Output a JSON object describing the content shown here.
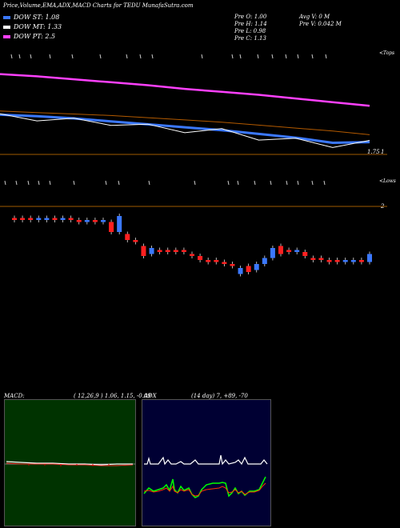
{
  "header": {
    "title": "Price,Volume,EMA,ADX,MACD Charts for TEDU MunafaSutra.com",
    "dow_lines": [
      {
        "label": "DOW ST: 1.08",
        "color": "#3b78ff"
      },
      {
        "label": "DOW MT: 1.33",
        "color": "#ffffff"
      },
      {
        "label": "DOW PT: 2.5",
        "color": "#ff40ff"
      }
    ],
    "stats": [
      "Pre  O: 1.00",
      "Avg V: 0  M",
      "Pre  H: 1.14",
      "Pre  V: 0.042  M",
      "Pre  L: 0.98",
      "Pre  C: 1.13"
    ]
  },
  "price_panel": {
    "top_label": "<Tops",
    "level_label_1": "1.75",
    "level_label_2": "1",
    "lows_label": "<Lows",
    "level_label_3": "2"
  },
  "macd": {
    "label": "MACD:",
    "params": "( 12,26,9 ) 1.06,  1.15,  -0.09",
    "bg": "#003300"
  },
  "adx": {
    "label": "ADX",
    "params": "(14  day) 7,  +89,  -70",
    "bg": "#000033"
  },
  "chart_data": {
    "type": "candlestick",
    "title": "Price,Volume,EMA,ADX,MACD Charts for TEDU MunafaSutra.com",
    "candles": [
      {
        "o": 1.57,
        "c": 1.56,
        "dir": "down"
      },
      {
        "o": 1.57,
        "c": 1.56,
        "dir": "down"
      },
      {
        "o": 1.57,
        "c": 1.56,
        "dir": "down"
      },
      {
        "o": 1.56,
        "c": 1.57,
        "dir": "up"
      },
      {
        "o": 1.56,
        "c": 1.57,
        "dir": "up"
      },
      {
        "o": 1.57,
        "c": 1.56,
        "dir": "down"
      },
      {
        "o": 1.56,
        "c": 1.57,
        "dir": "up"
      },
      {
        "o": 1.57,
        "c": 1.56,
        "dir": "down"
      },
      {
        "o": 1.56,
        "c": 1.55,
        "dir": "down"
      },
      {
        "o": 1.55,
        "c": 1.56,
        "dir": "up"
      },
      {
        "o": 1.56,
        "c": 1.55,
        "dir": "down"
      },
      {
        "o": 1.55,
        "c": 1.56,
        "dir": "up"
      },
      {
        "o": 1.55,
        "c": 1.5,
        "dir": "down"
      },
      {
        "o": 1.5,
        "c": 1.58,
        "dir": "up"
      },
      {
        "o": 1.49,
        "c": 1.46,
        "dir": "down"
      },
      {
        "o": 1.46,
        "c": 1.45,
        "dir": "down"
      },
      {
        "o": 1.43,
        "c": 1.38,
        "dir": "down"
      },
      {
        "o": 1.39,
        "c": 1.42,
        "dir": "up"
      },
      {
        "o": 1.41,
        "c": 1.4,
        "dir": "down"
      },
      {
        "o": 1.41,
        "c": 1.4,
        "dir": "down"
      },
      {
        "o": 1.41,
        "c": 1.4,
        "dir": "down"
      },
      {
        "o": 1.41,
        "c": 1.4,
        "dir": "down"
      },
      {
        "o": 1.39,
        "c": 1.38,
        "dir": "down"
      },
      {
        "o": 1.38,
        "c": 1.36,
        "dir": "down"
      },
      {
        "o": 1.36,
        "c": 1.35,
        "dir": "down"
      },
      {
        "o": 1.36,
        "c": 1.35,
        "dir": "down"
      },
      {
        "o": 1.35,
        "c": 1.34,
        "dir": "down"
      },
      {
        "o": 1.34,
        "c": 1.33,
        "dir": "down"
      },
      {
        "o": 1.29,
        "c": 1.32,
        "dir": "up"
      },
      {
        "o": 1.33,
        "c": 1.3,
        "dir": "down"
      },
      {
        "o": 1.31,
        "c": 1.34,
        "dir": "up"
      },
      {
        "o": 1.34,
        "c": 1.37,
        "dir": "up"
      },
      {
        "o": 1.37,
        "c": 1.42,
        "dir": "up"
      },
      {
        "o": 1.43,
        "c": 1.39,
        "dir": "down"
      },
      {
        "o": 1.41,
        "c": 1.4,
        "dir": "down"
      },
      {
        "o": 1.4,
        "c": 1.41,
        "dir": "up"
      },
      {
        "o": 1.4,
        "c": 1.38,
        "dir": "down"
      },
      {
        "o": 1.37,
        "c": 1.36,
        "dir": "down"
      },
      {
        "o": 1.37,
        "c": 1.36,
        "dir": "down"
      },
      {
        "o": 1.36,
        "c": 1.35,
        "dir": "down"
      },
      {
        "o": 1.36,
        "c": 1.35,
        "dir": "down"
      },
      {
        "o": 1.35,
        "c": 1.36,
        "dir": "up"
      },
      {
        "o": 1.35,
        "c": 1.36,
        "dir": "up"
      },
      {
        "o": 1.36,
        "c": 1.35,
        "dir": "down"
      },
      {
        "o": 1.35,
        "c": 1.39,
        "dir": "up"
      }
    ],
    "ema_lines": [
      {
        "color": "#ff40ff",
        "values": [
          2.55,
          2.52,
          2.48,
          2.44,
          2.4,
          2.35,
          2.31,
          2.27,
          2.22,
          2.17,
          2.12
        ]
      },
      {
        "color": "#b35a00",
        "values": [
          2.05,
          2.03,
          2.01,
          1.99,
          1.96,
          1.93,
          1.9,
          1.86,
          1.82,
          1.78,
          1.73
        ]
      },
      {
        "color": "#3b78ff",
        "values": [
          2.0,
          1.98,
          1.95,
          1.91,
          1.87,
          1.83,
          1.79,
          1.74,
          1.69,
          1.62,
          1.63
        ]
      },
      {
        "color": "#ffffff",
        "values": [
          1.98,
          1.96,
          1.92,
          1.9,
          1.84,
          1.8,
          1.78,
          1.7,
          1.65,
          1.6,
          1.62
        ]
      }
    ],
    "macd_lines": {
      "macd": 1.06,
      "signal": 1.15,
      "histogram": -0.09
    },
    "adx": {
      "adx": 7,
      "plus_di": 89,
      "minus_di": 70
    }
  }
}
